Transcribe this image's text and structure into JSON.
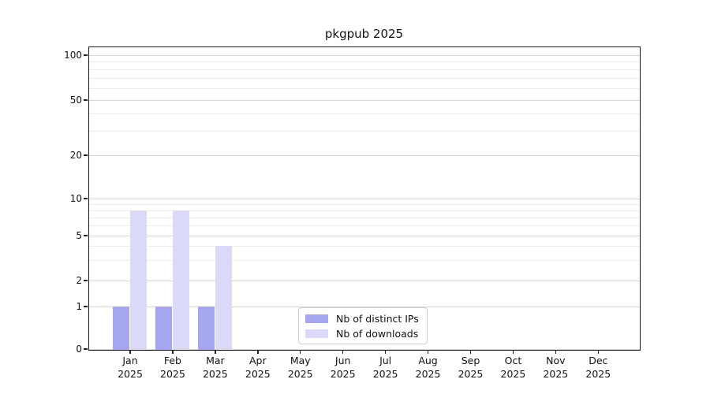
{
  "chart_data": {
    "type": "bar",
    "title": "pkgpub 2025",
    "categories": [
      "Jan",
      "Feb",
      "Mar",
      "Apr",
      "May",
      "Jun",
      "Jul",
      "Aug",
      "Sep",
      "Oct",
      "Nov",
      "Dec"
    ],
    "year_label": "2025",
    "series": [
      {
        "name": "Nb of distinct IPs",
        "color": "#a6a6f0",
        "values": [
          1,
          1,
          1,
          0,
          0,
          0,
          0,
          0,
          0,
          0,
          0,
          0
        ]
      },
      {
        "name": "Nb of downloads",
        "color": "#dadaf8",
        "values": [
          8,
          8,
          4,
          0,
          0,
          0,
          0,
          0,
          0,
          0,
          0,
          0
        ]
      }
    ],
    "yticks": [
      0,
      1,
      2,
      5,
      10,
      20,
      50,
      100
    ],
    "minor_yticks": [
      3,
      4,
      6,
      7,
      8,
      9,
      30,
      40,
      60,
      70,
      80,
      90
    ],
    "ylim": [
      0,
      100
    ],
    "yscale": "symlog-like",
    "grid": true,
    "legend_position": "lower center",
    "colors": {
      "spine": "#1a1a1a",
      "major_grid": "#d6d6d6",
      "minor_grid": "#ececec",
      "text": "#111111"
    }
  }
}
